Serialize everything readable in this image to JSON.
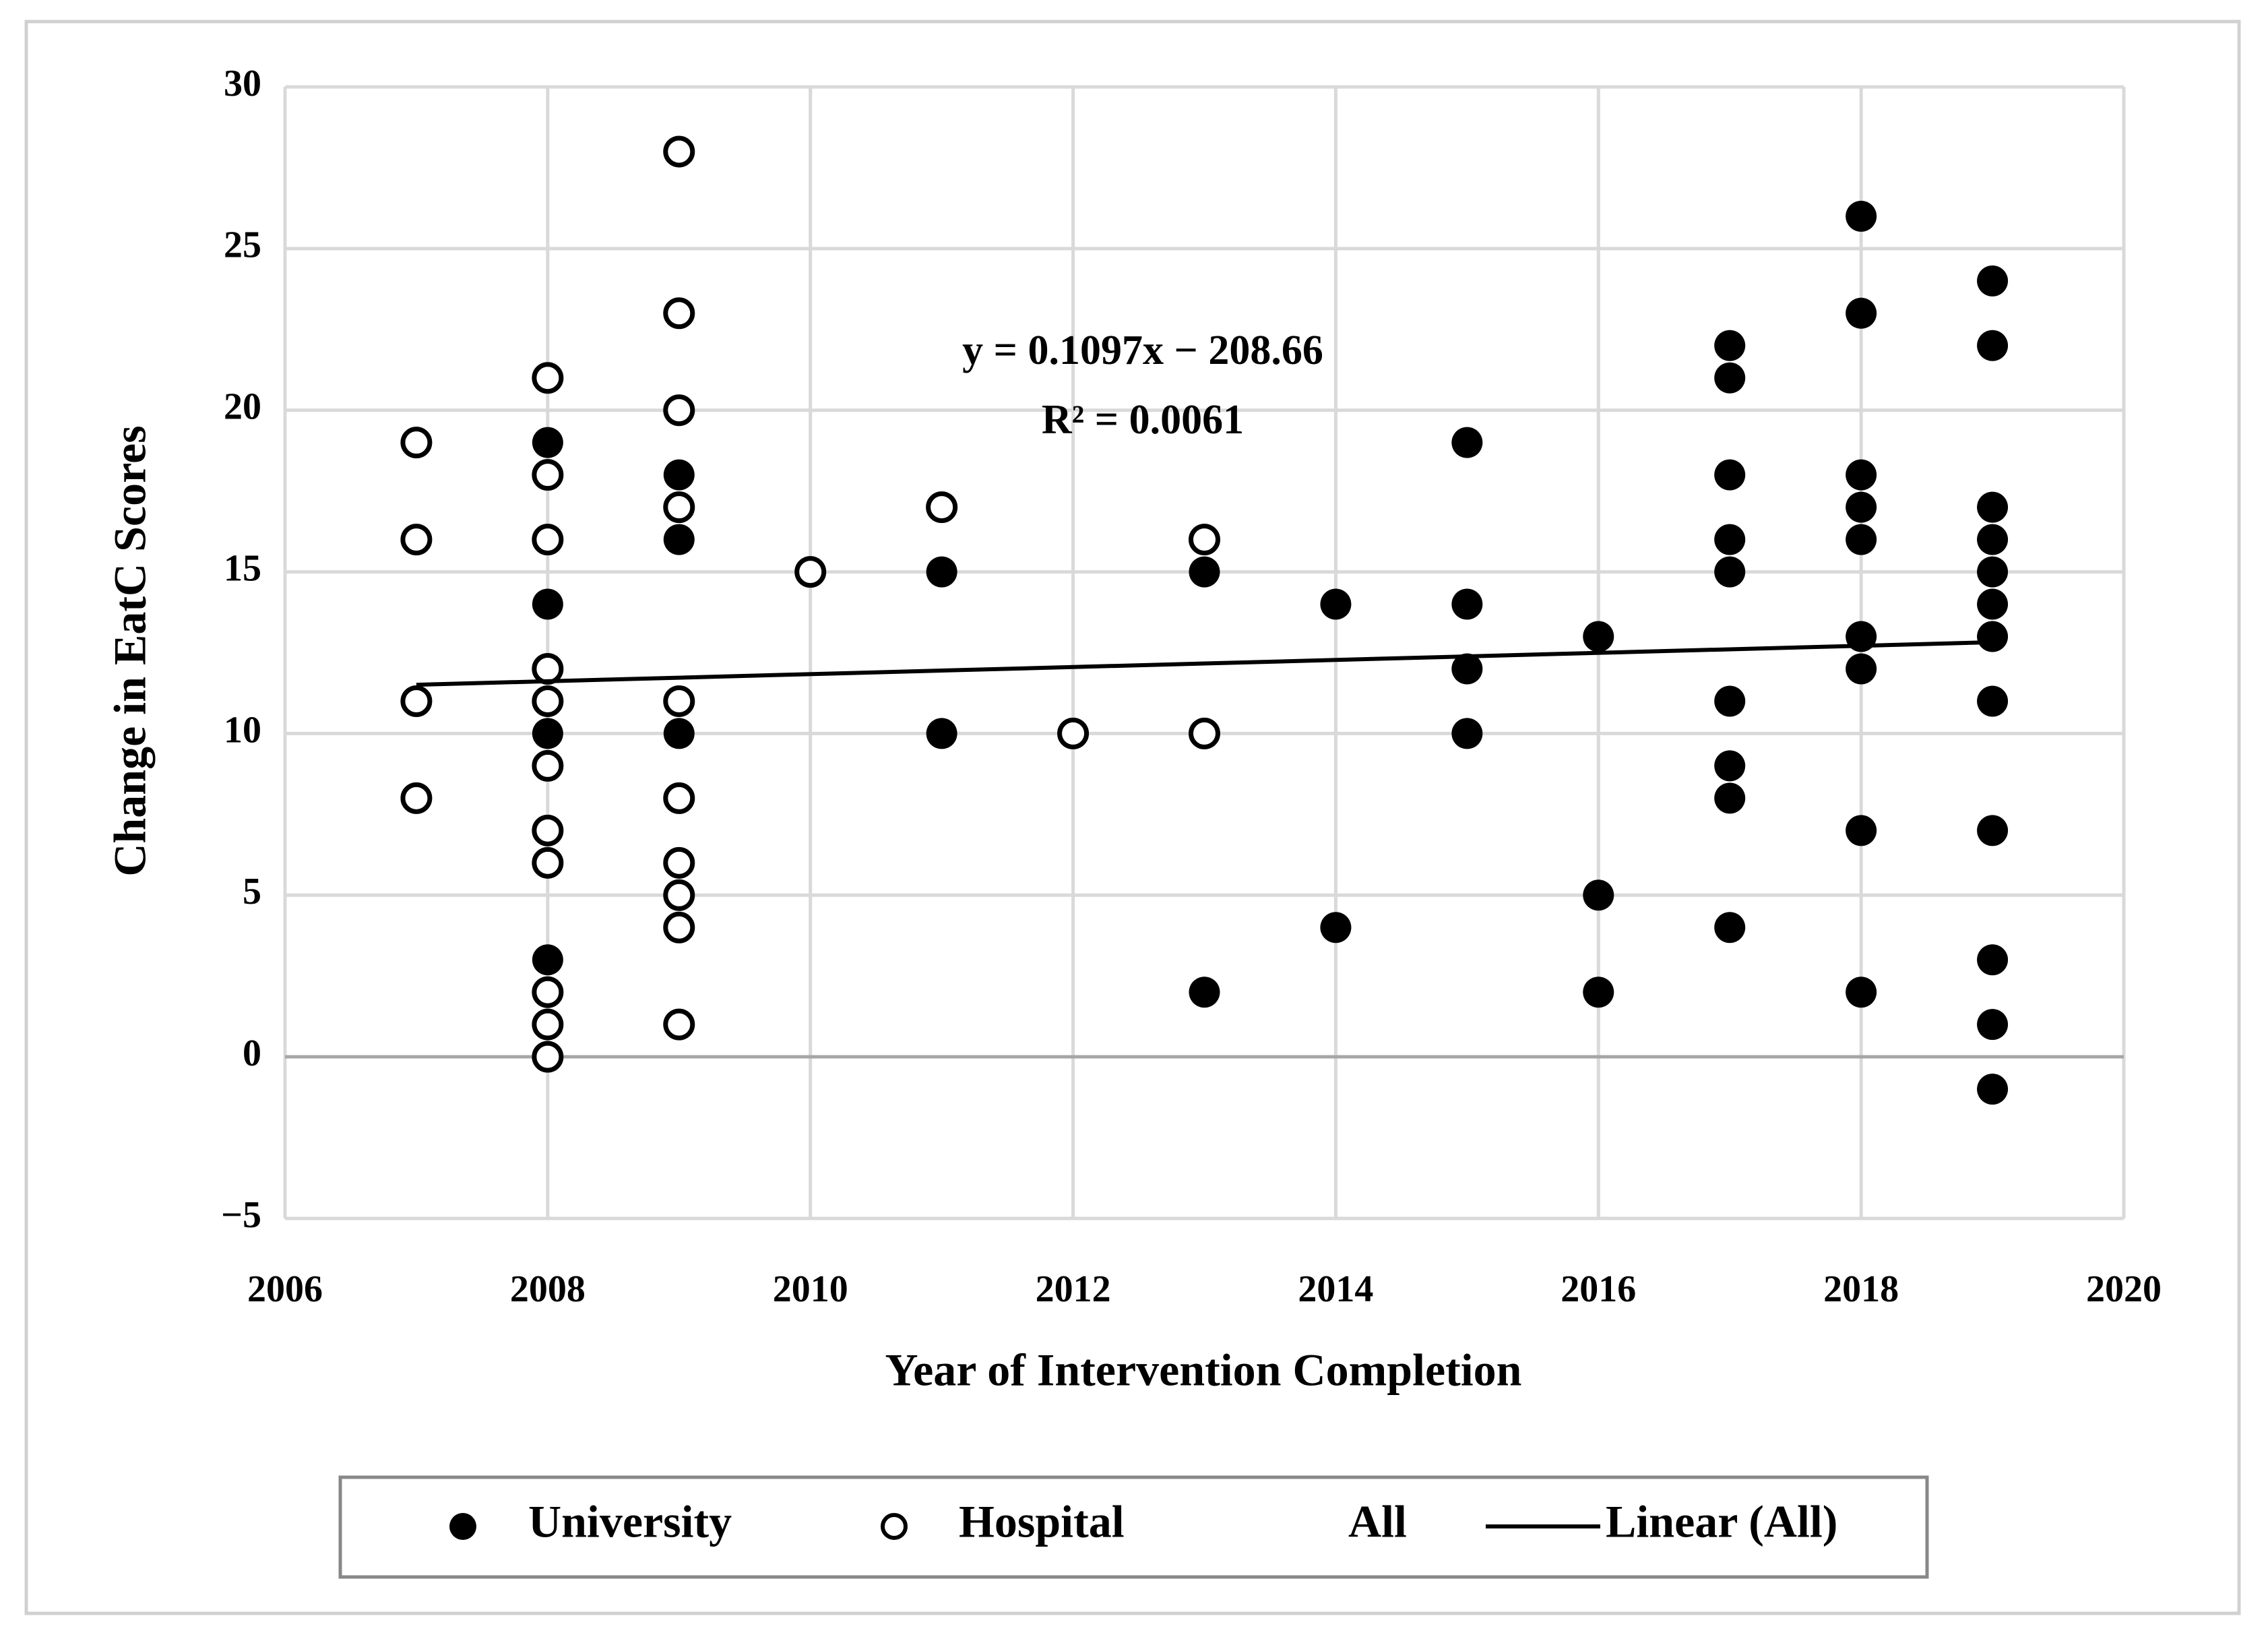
{
  "chart_data": {
    "type": "scatter",
    "x_label": "Year of Intervention Completion",
    "y_label": "Change in EatC Scores",
    "xlim": [
      2006,
      2020
    ],
    "xticks": [
      2006,
      2008,
      2010,
      2012,
      2014,
      2016,
      2018,
      2020
    ],
    "ylim": [
      -5,
      30
    ],
    "yticks": [
      {
        "value": -5,
        "label": "−5"
      },
      0,
      5,
      10,
      15,
      20,
      25,
      30
    ],
    "grid": true,
    "series": [
      {
        "name": "University",
        "color": "#000000",
        "marker": "filled",
        "x": [
          2008,
          2008,
          2008,
          2008,
          2009,
          2009,
          2009,
          2011,
          2011,
          2013,
          2013,
          2014,
          2014,
          2015,
          2015,
          2015,
          2015,
          2016,
          2016,
          2016,
          2017,
          2017,
          2017,
          2017,
          2017,
          2017,
          2017,
          2017,
          2017,
          2018,
          2018,
          2018,
          2018,
          2018,
          2018,
          2018,
          2018,
          2018,
          2019,
          2019,
          2019,
          2019,
          2019,
          2019,
          2019,
          2019,
          2019,
          2019,
          2019,
          2019
        ],
        "values": [
          19,
          14,
          10,
          3,
          18,
          16,
          10,
          15,
          10,
          15,
          2,
          14,
          4,
          19,
          14,
          12,
          10,
          13,
          5,
          2,
          22,
          21,
          18,
          16,
          15,
          11,
          9,
          8,
          4,
          26,
          23,
          18,
          17,
          16,
          13,
          12,
          7,
          2,
          24,
          22,
          17,
          16,
          15,
          14,
          13,
          11,
          7,
          3,
          1,
          -1
        ]
      },
      {
        "name": "Hospital",
        "color": "#000000",
        "marker": "hollow",
        "x": [
          2007,
          2007,
          2007,
          2007,
          2008,
          2008,
          2008,
          2008,
          2008,
          2008,
          2008,
          2008,
          2008,
          2008,
          2008,
          2009,
          2009,
          2009,
          2009,
          2009,
          2009,
          2009,
          2009,
          2009,
          2009,
          2010,
          2011,
          2012,
          2013,
          2013
        ],
        "values": [
          19,
          16,
          11,
          8,
          21,
          18,
          16,
          12,
          11,
          9,
          7,
          6,
          2,
          1,
          0,
          28,
          23,
          20,
          17,
          11,
          8,
          6,
          5,
          4,
          1,
          15,
          17,
          10,
          16,
          10
        ]
      },
      {
        "name": "All",
        "color": "#000000",
        "marker": "none",
        "x": [],
        "values": []
      }
    ],
    "trendline": {
      "name": "Linear (All)",
      "color": "#000000",
      "slope": 0.1097,
      "intercept": -208.66,
      "x_range": [
        2007,
        2019
      ],
      "equation": "y = 0.1097x − 208.66",
      "r_squared": "R² = 0.0061"
    }
  }
}
